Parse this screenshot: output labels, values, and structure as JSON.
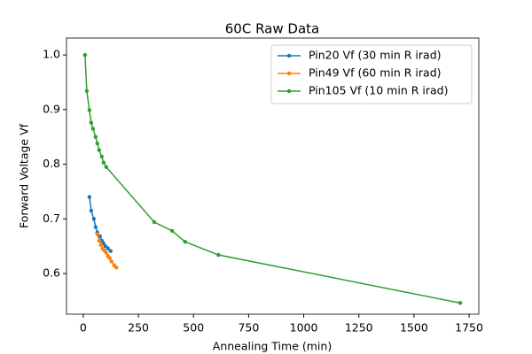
{
  "chart_data": {
    "type": "line",
    "title": "60C Raw Data",
    "xlabel": "Annealing Time (min)",
    "ylabel": "Forward Voltage Vf",
    "xlim": [
      -76,
      1794
    ],
    "ylim": [
      0.5255,
      1.031
    ],
    "xticks": [
      0,
      250,
      500,
      750,
      1000,
      1250,
      1500,
      1750
    ],
    "yticks": [
      0.6,
      0.7,
      0.8,
      0.9,
      {
        "value": 1,
        "label": "1.0"
      }
    ],
    "legend": "upper right",
    "series": [
      {
        "name": "Pin20 Vf (30 min R irad)",
        "color": "#1f77b4",
        "x": [
          28,
          36,
          48,
          56,
          64,
          76,
          84,
          92,
          100,
          112,
          124
        ],
        "values": [
          0.74,
          0.715,
          0.7,
          0.685,
          0.675,
          0.668,
          0.66,
          0.655,
          0.65,
          0.646,
          0.641
        ]
      },
      {
        "name": "Pin49 Vf (60 min R irad)",
        "color": "#ff7f0e",
        "x": [
          64,
          72,
          80,
          88,
          96,
          104,
          112,
          120,
          128,
          140,
          150
        ],
        "values": [
          0.672,
          0.66,
          0.652,
          0.645,
          0.642,
          0.638,
          0.632,
          0.628,
          0.622,
          0.615,
          0.611
        ]
      },
      {
        "name": "Pin105 Vf (10 min R irad)",
        "color": "#2ca02c",
        "x": [
          8,
          16,
          28,
          36,
          44,
          56,
          64,
          72,
          84,
          92,
          104,
          322,
          403,
          462,
          613,
          1710
        ],
        "values": [
          1.0,
          0.934,
          0.899,
          0.876,
          0.865,
          0.85,
          0.838,
          0.826,
          0.814,
          0.803,
          0.795,
          0.694,
          0.678,
          0.658,
          0.634,
          0.546
        ]
      }
    ]
  }
}
